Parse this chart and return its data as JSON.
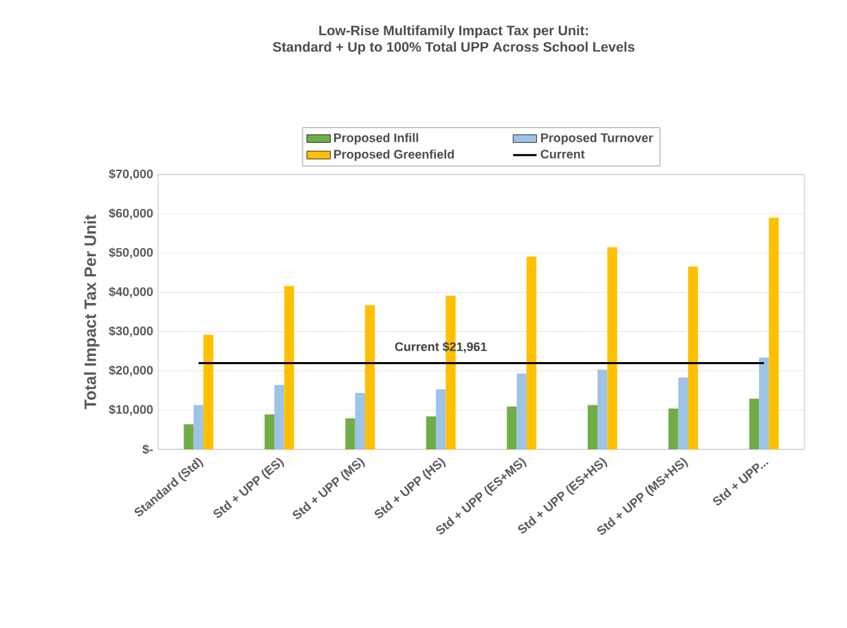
{
  "chart_data": {
    "type": "bar",
    "title": "Low-Rise Multifamily Impact Tax per Unit:",
    "subtitle": "Standard + Up to 100% Total UPP Across School Levels",
    "ylabel": "Total Impact Tax Per Unit",
    "categories": [
      "Standard (Std)",
      "Std + UPP (ES)",
      "Std + UPP (MS)",
      "Std + UPP (HS)",
      "Std + UPP (ES+MS)",
      "Std + UPP (ES+HS)",
      "Std + UPP (MS+HS)",
      "Std + UPP..."
    ],
    "series": [
      {
        "name": "Proposed Infill",
        "color": "#70ad47",
        "values": [
          6400,
          8900,
          7900,
          8400,
          10900,
          11300,
          10400,
          12900
        ]
      },
      {
        "name": "Proposed Turnover",
        "color": "#9dc3e6",
        "values": [
          11300,
          16400,
          14400,
          15300,
          19300,
          20300,
          18300,
          23400
        ]
      },
      {
        "name": "Proposed Greenfield",
        "color": "#ffc000",
        "values": [
          29200,
          41600,
          36700,
          39100,
          49100,
          51500,
          46600,
          59000
        ]
      },
      {
        "name": "Current",
        "type": "line",
        "color": "#000000",
        "values": [
          21961,
          21961,
          21961,
          21961,
          21961,
          21961,
          21961,
          21961
        ]
      }
    ],
    "annotations": [
      {
        "text": "Current  $21,961",
        "x": "Std + UPP (HS)",
        "y": 21961
      }
    ],
    "ylim": [
      0,
      70000
    ],
    "yticks": [
      {
        "value": 0,
        "label": "$-"
      },
      {
        "value": 10000,
        "label": "$10,000"
      },
      {
        "value": 20000,
        "label": "$20,000"
      },
      {
        "value": 30000,
        "label": "$30,000"
      },
      {
        "value": 40000,
        "label": "$40,000"
      },
      {
        "value": 50000,
        "label": "$50,000"
      },
      {
        "value": 60000,
        "label": "$60,000"
      },
      {
        "value": 70000,
        "label": "$70,000"
      }
    ],
    "grid": "y",
    "legend": "top",
    "marker": "none"
  }
}
